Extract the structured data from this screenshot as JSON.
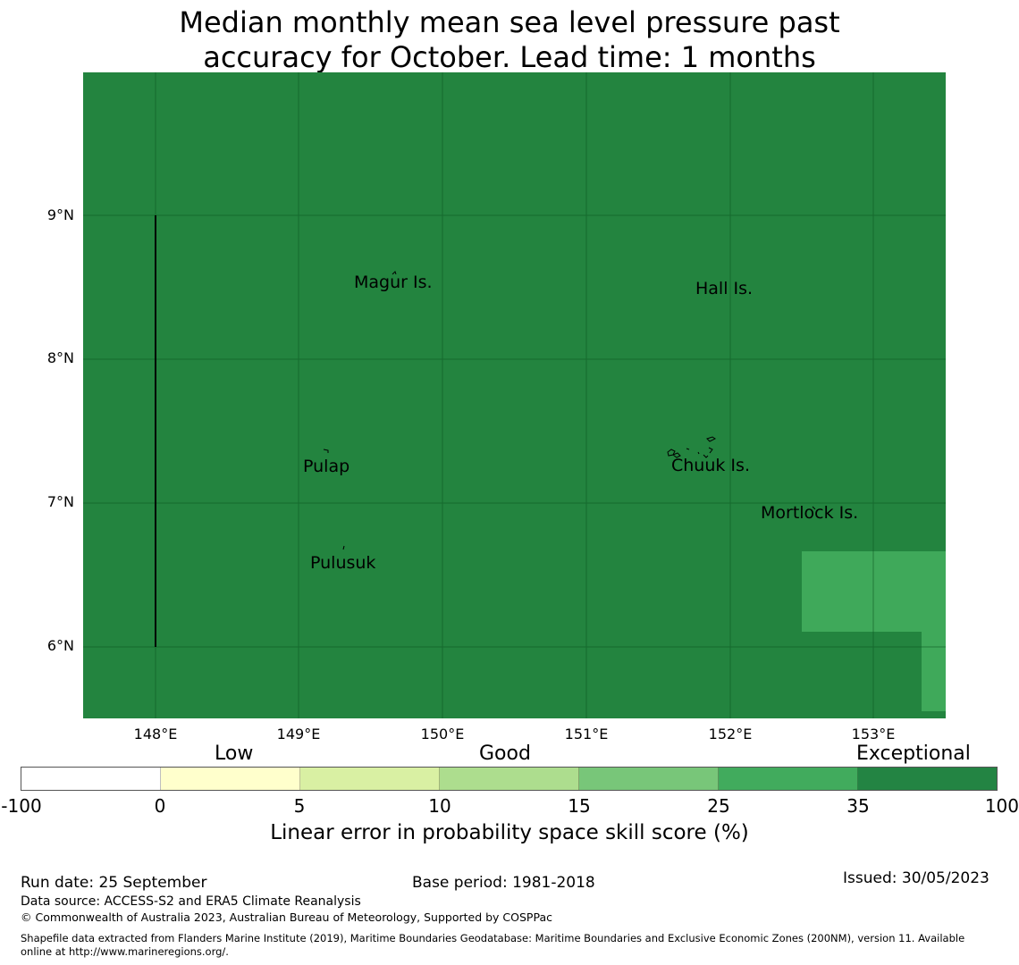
{
  "title": {
    "line1": "Median monthly mean sea level pressure past",
    "line2": "accuracy for October. Lead time: 1 months"
  },
  "map": {
    "background_color": "#23843f",
    "lighter_region_color": "#3fa95a",
    "latitude_labels": [
      "9°N",
      "8°N",
      "7°N",
      "6°N"
    ],
    "longitude_labels": [
      "148°E",
      "149°E",
      "150°E",
      "151°E",
      "152°E",
      "153°E"
    ],
    "places": [
      {
        "name": "Magur Is."
      },
      {
        "name": "Hall Is."
      },
      {
        "name": "Pulap"
      },
      {
        "name": "Chuuk Is."
      },
      {
        "name": "Mortlock Is."
      },
      {
        "name": "Pulusuk"
      }
    ]
  },
  "legend": {
    "categories": [
      "Low",
      "Good",
      "Exceptional"
    ],
    "colors": [
      "#ffffff",
      "#ffffcc",
      "#d9f0a3",
      "#addd8e",
      "#78c679",
      "#41ab5d",
      "#238443"
    ],
    "ticks": [
      "-100",
      "0",
      "5",
      "10",
      "15",
      "25",
      "35",
      "100"
    ],
    "label": "Linear error in probability space skill score (%)"
  },
  "footer": {
    "run_date": "Run date: 25 September",
    "base_period": "Base period: 1981-2018",
    "issued": "Issued: 30/05/2023",
    "data_source": "Data source: ACCESS-S2 and ERA5 Climate Reanalysis",
    "copyright": "© Commonwealth of Australia 2023, Australian Bureau of Meteorology, Supported by COSPPac",
    "shapefile_line1": "Shapefile data extracted from Flanders Marine Institute (2019), Maritime Boundaries Geodatabase: Maritime Boundaries and Exclusive Economic Zones (200NM), version 11. Available",
    "shapefile_line2": "online at http://www.marineregions.org/."
  }
}
